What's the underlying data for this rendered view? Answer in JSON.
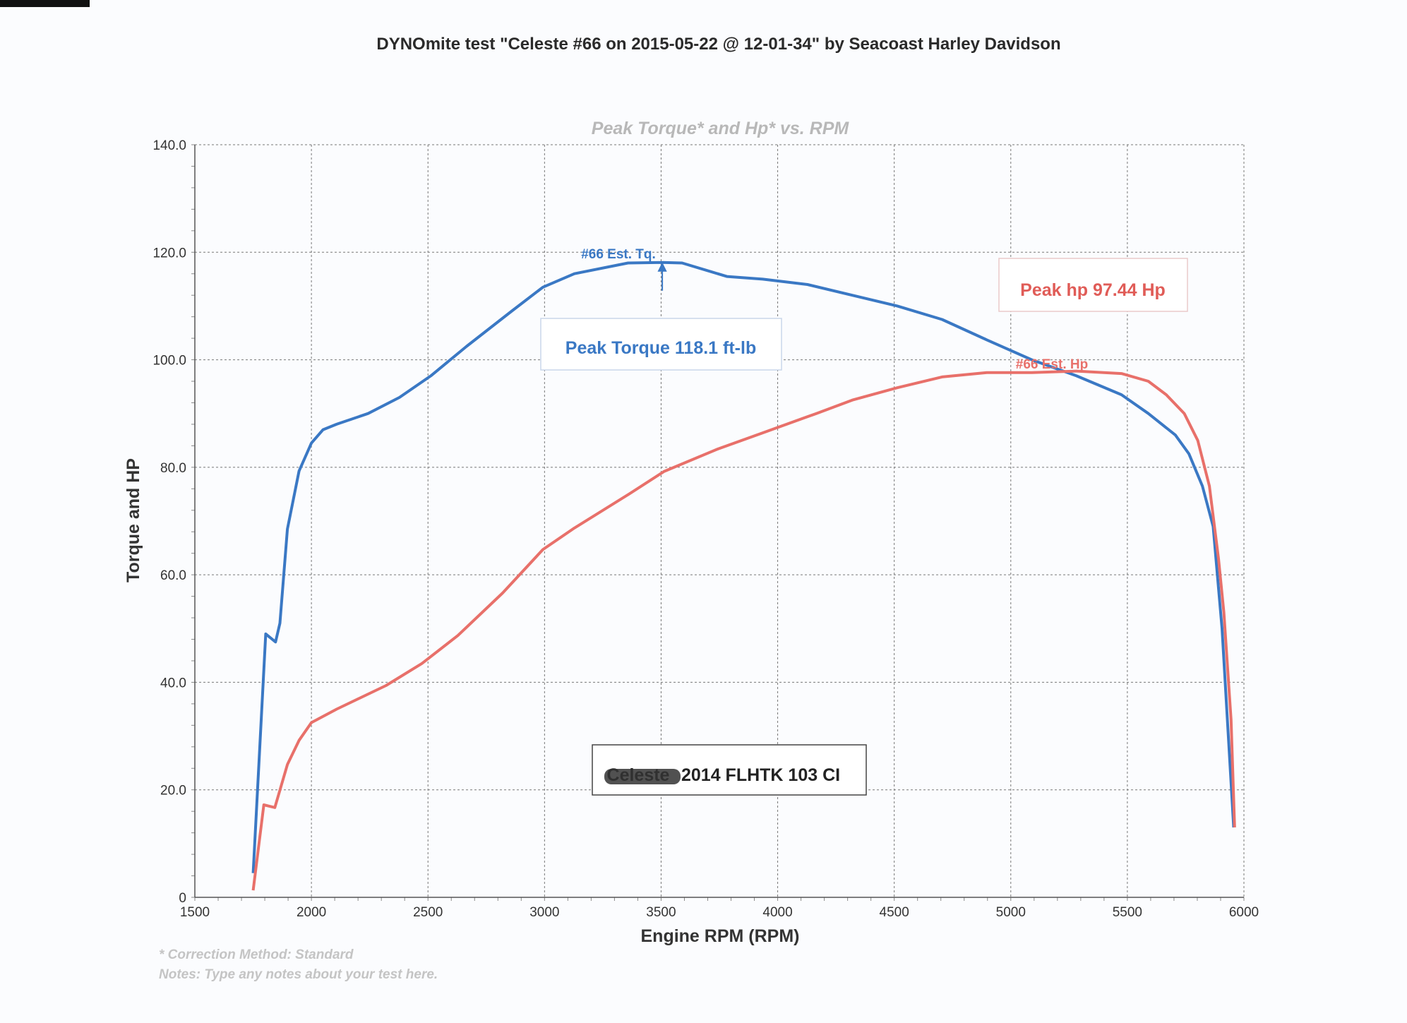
{
  "header": {
    "title": "DYNOmite test \"Celeste #66 on 2015-05-22 @ 12-01-34\" by Seacoast Harley Davidson"
  },
  "footer": {
    "correction": "* Correction Method: Standard",
    "notes": "Notes: Type any notes about your test here."
  },
  "chart_data": {
    "type": "line",
    "title": "Peak Torque* and Hp* vs. RPM",
    "xlabel": "Engine RPM (RPM)",
    "ylabel": "Torque and HP",
    "xlim": [
      1500,
      6000
    ],
    "ylim": [
      0,
      140
    ],
    "xticks": [
      "1500",
      "2000",
      "2500",
      "3000",
      "3500",
      "4000",
      "4500",
      "5000",
      "5500",
      "6000"
    ],
    "yticks": [
      "0",
      "20.0",
      "40.0",
      "60.0",
      "80.0",
      "100.0",
      "120.0",
      "140.0"
    ],
    "grid": true,
    "colors": {
      "torque": "#3a78c4",
      "hp": "#e8706a"
    },
    "series": [
      {
        "key": "torque",
        "color": "#3a78c4",
        "x": [
          1750,
          1804,
          1846,
          1865,
          1897,
          1947,
          2000,
          2050,
          2108,
          2243,
          2378,
          2512,
          2666,
          2858,
          2993,
          3128,
          3358,
          3505,
          3590,
          3782,
          3936,
          4128,
          4320,
          4513,
          4705,
          4897,
          5090,
          5282,
          5475,
          5590,
          5706,
          5764,
          5822,
          5868,
          5906,
          5956
        ],
        "y": [
          4.5,
          49,
          47.5,
          51,
          68.5,
          79.3,
          84.5,
          87,
          88,
          90,
          93,
          97,
          102.5,
          109,
          113.5,
          116,
          118,
          118.1,
          118,
          115.5,
          115,
          114,
          112,
          110,
          107.5,
          103.7,
          100,
          97,
          93.5,
          90,
          86,
          82.5,
          76.5,
          69,
          50,
          13
        ]
      },
      {
        "key": "hp",
        "color": "#e8706a",
        "x": [
          1750,
          1796,
          1843,
          1897,
          1947,
          2000,
          2108,
          2320,
          2474,
          2628,
          2820,
          2993,
          3128,
          3358,
          3512,
          3743,
          3936,
          4166,
          4320,
          4513,
          4705,
          4897,
          5090,
          5282,
          5475,
          5590,
          5667,
          5744,
          5802,
          5852,
          5891,
          5914,
          5945,
          5960
        ],
        "y": [
          1.3,
          17.2,
          16.7,
          24.7,
          29.2,
          32.5,
          35,
          39.4,
          43.5,
          48.7,
          56.6,
          64.7,
          68.7,
          74.9,
          79.2,
          83.4,
          86.4,
          90,
          92.5,
          94.8,
          96.8,
          97.6,
          97.6,
          97.9,
          97.44,
          96,
          93.5,
          90,
          85,
          76.5,
          63,
          53,
          33,
          13
        ]
      }
    ],
    "annotations": {
      "torque_marker": "#66 Est. Tq.",
      "torque_marker_rpm": 3505,
      "torque_peak": "Peak Torque 118.1 ft-lb",
      "hp_marker": "#66 Est. Hp",
      "hp_peak": "Peak hp 97.44 Hp",
      "vehicle_redacted": "Celeste",
      "vehicle": "2014 FLHTK 103 CI"
    }
  }
}
